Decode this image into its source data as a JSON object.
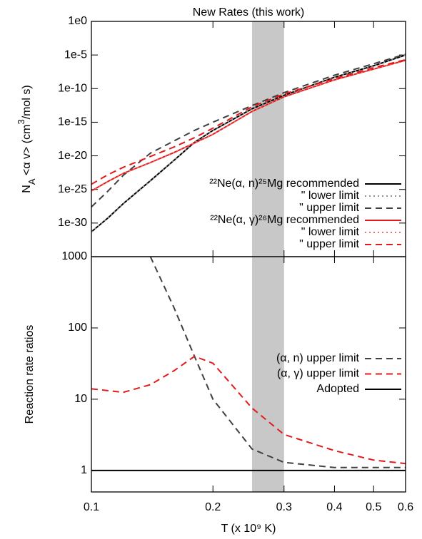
{
  "chart_data": [
    {
      "type": "line",
      "title": "New Rates (this work)",
      "ylabel": [
        "N",
        "A",
        " <α v> (cm",
        "3",
        "/mol s)"
      ],
      "log_x": true,
      "log_y": true,
      "xlim": [
        0.1,
        0.6
      ],
      "ylim": [
        1e-35,
        1
      ],
      "yticks": [
        {
          "value": 1,
          "label": "1e0"
        },
        {
          "value": 1e-05,
          "label": "1e-5"
        },
        {
          "value": 1e-10,
          "label": "1e-10"
        },
        {
          "value": 1e-15,
          "label": "1e-15"
        },
        {
          "value": 1e-20,
          "label": "1e-20"
        },
        {
          "value": 1e-25,
          "label": "1e-25"
        },
        {
          "value": 1e-30,
          "label": "1e-30"
        }
      ],
      "shaded_xrange": [
        0.25,
        0.3
      ],
      "shade_color": "#c8c8c8",
      "legend": "lower right",
      "x": [
        0.1,
        0.11,
        0.12,
        0.14,
        0.16,
        0.18,
        0.2,
        0.25,
        0.3,
        0.4,
        0.5,
        0.6
      ],
      "series": [
        {
          "name": "²²Ne(α, n)²⁵Mg recommended",
          "color": "#000000",
          "dash": "solid",
          "values": [
            5e-32,
            6e-30,
            8e-28,
            2e-24,
            2e-21,
            1e-18,
            6e-17,
            1e-13,
            1e-11,
            5e-09,
            2.5e-07,
            1e-05
          ]
        },
        {
          "name": "\" lower limit",
          "color": "#909090",
          "dash": "dotted",
          "values": [
            5e-32,
            6e-30,
            8e-28,
            2e-24,
            2e-21,
            1e-18,
            6e-17,
            1e-13,
            1e-11,
            5e-09,
            2.5e-07,
            1e-05
          ]
        },
        {
          "name": "\" upper limit",
          "color": "#404040",
          "dash": "dashed",
          "values": [
            2.5e-28,
            6e-26,
            1.3e-23,
            2.5e-20,
            1.6e-18,
            6e-17,
            1e-15,
            3e-13,
            2.5e-11,
            1e-08,
            5e-07,
            1.3e-05
          ]
        },
        {
          "name": "²²Ne(α, γ)²⁶Mg recommended",
          "color": "#e31a1c",
          "dash": "solid",
          "values": [
            6e-26,
            1.6e-24,
            2.5e-23,
            1e-21,
            3e-20,
            8e-19,
            1.6e-17,
            4e-14,
            6e-12,
            2e-09,
            8e-08,
            1.6e-06
          ]
        },
        {
          "name": "\" lower limit",
          "color": "#f07070",
          "dash": "dotted",
          "values": [
            6e-26,
            1.6e-24,
            2.5e-23,
            1e-21,
            3e-20,
            8e-19,
            1.6e-17,
            4e-14,
            6e-12,
            2e-09,
            8e-08,
            1.6e-06
          ]
        },
        {
          "name": "\" upper limit",
          "color": "#e31a1c",
          "dash": "dashed",
          "values": [
            6e-25,
            1.6e-23,
            2e-22,
            8e-21,
            2e-19,
            5e-18,
            1.3e-16,
            2e-13,
            1.6e-11,
            3e-09,
            1.3e-07,
            2e-06
          ]
        }
      ]
    },
    {
      "type": "line",
      "xlabel": "T (x 10⁹ K)",
      "ylabel": [
        "Reaction rate ratios"
      ],
      "log_x": true,
      "log_y": true,
      "xlim": [
        0.1,
        0.6
      ],
      "ylim": [
        0.5,
        1000
      ],
      "xticks": [
        0.1,
        0.2,
        0.3,
        0.4,
        0.5,
        0.6
      ],
      "yticks": [
        1,
        10,
        100,
        1000
      ],
      "shaded_xrange": [
        0.25,
        0.3
      ],
      "shade_color": "#c8c8c8",
      "legend": "right",
      "x": [
        0.1,
        0.12,
        0.14,
        0.16,
        0.18,
        0.2,
        0.25,
        0.3,
        0.4,
        0.5,
        0.6
      ],
      "series": [
        {
          "name": "(α, n) upper limit",
          "color": "#404040",
          "dash": "dashed",
          "values": [
            null,
            null,
            1000,
            195,
            40,
            10,
            2,
            1.3,
            1.1,
            1.1,
            1.1
          ]
        },
        {
          "name": "(α, γ) upper limit",
          "color": "#e31a1c",
          "dash": "dashed",
          "values": [
            14,
            12.5,
            16,
            25,
            40,
            32,
            7.5,
            3.2,
            1.9,
            1.4,
            1.25
          ]
        },
        {
          "name": "Adopted",
          "color": "#000000",
          "dash": "solid",
          "values": [
            1,
            1,
            1,
            1,
            1,
            1,
            1,
            1,
            1,
            1,
            1
          ]
        }
      ]
    }
  ]
}
